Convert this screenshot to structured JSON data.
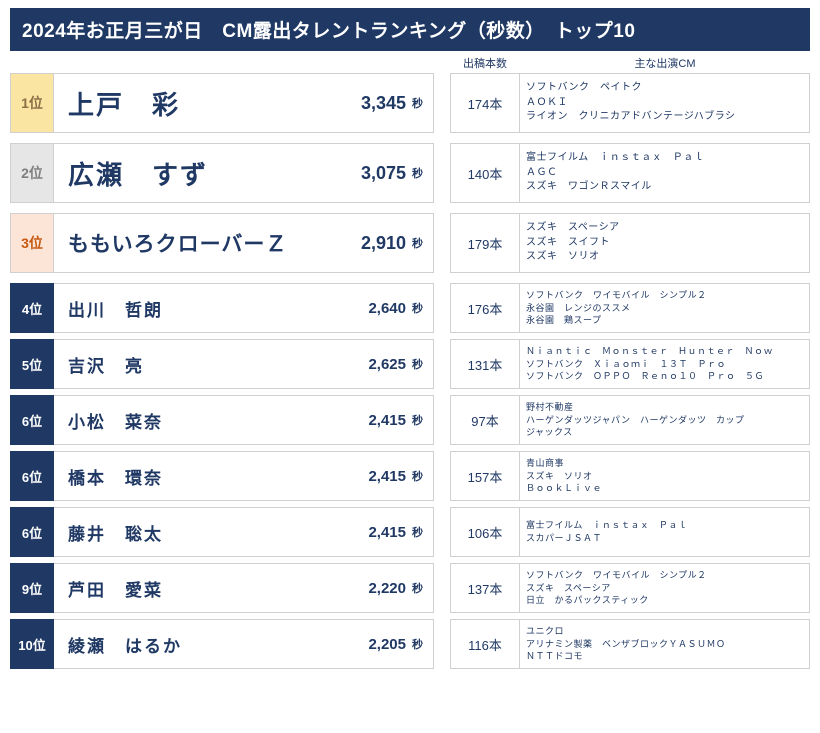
{
  "title": "2024年お正月三が日　CM露出タレントランキング（秒数）　トップ10",
  "headers": {
    "count": "出稿本数",
    "cm": "主な出演CM"
  },
  "unit_seconds": "秒",
  "unit_count": "本",
  "colors": {
    "rank1_bg": "#fbe5a3",
    "rank2_bg": "#e7e6e6",
    "rank3_bg": "#fce4d6",
    "rank_text": "#8b6f47",
    "rank2_text": "#7f7f7f",
    "rank3_text": "#c65911",
    "navy": "#1f3864"
  },
  "rows": [
    {
      "rank": "1位",
      "name": "上戸　彩",
      "seconds": "3,345",
      "count": "174",
      "cms": [
        "ソフトバンク　ペイトク",
        "ＡＯＫＩ",
        "ライオン　クリニカアドバンテージハブラシ"
      ]
    },
    {
      "rank": "2位",
      "name": "広瀬　すず",
      "seconds": "3,075",
      "count": "140",
      "cms": [
        "富士フイルム　ｉｎｓｔａｘ　Ｐａｌ",
        "ＡＧＣ",
        "スズキ　ワゴンＲスマイル"
      ]
    },
    {
      "rank": "3位",
      "name": "ももいろクローバーＺ",
      "seconds": "2,910",
      "count": "179",
      "cms": [
        "スズキ　スペーシア",
        "スズキ　スイフト",
        "スズキ　ソリオ"
      ]
    },
    {
      "rank": "4位",
      "name": "出川　哲朗",
      "seconds": "2,640",
      "count": "176",
      "cms": [
        "ソフトバンク　ワイモバイル　シンプル２",
        "永谷園　レンジのススメ",
        "永谷園　鶏スープ"
      ]
    },
    {
      "rank": "5位",
      "name": "吉沢　亮",
      "seconds": "2,625",
      "count": "131",
      "cms": [
        "Ｎｉａｎｔｉｃ　Ｍｏｎｓｔｅｒ　Ｈｕｎｔｅｒ　Ｎｏｗ",
        "ソフトバンク　Ｘｉａｏｍｉ　１３Ｔ　Ｐｒｏ",
        "ソフトバンク　ＯＰＰＯ　Ｒｅｎｏ１０　Ｐｒｏ　５Ｇ"
      ]
    },
    {
      "rank": "6位",
      "name": "小松　菜奈",
      "seconds": "2,415",
      "count": "97",
      "cms": [
        "野村不動産",
        "ハーゲンダッツジャパン　ハーゲンダッツ　カップ",
        "ジャックス"
      ]
    },
    {
      "rank": "6位",
      "name": "橋本　環奈",
      "seconds": "2,415",
      "count": "157",
      "cms": [
        "青山商事",
        "スズキ　ソリオ",
        "ＢｏｏｋＬｉｖｅ"
      ]
    },
    {
      "rank": "6位",
      "name": "藤井　聡太",
      "seconds": "2,415",
      "count": "106",
      "cms": [
        "富士フイルム　ｉｎｓｔａｘ　Ｐａｌ",
        "スカパーＪＳＡＴ",
        ""
      ]
    },
    {
      "rank": "9位",
      "name": "芦田　愛菜",
      "seconds": "2,220",
      "count": "137",
      "cms": [
        "ソフトバンク　ワイモバイル　シンプル２",
        "スズキ　スペーシア",
        "日立　かるパックスティック"
      ]
    },
    {
      "rank": "10位",
      "name": "綾瀬　はるか",
      "seconds": "2,205",
      "count": "116",
      "cms": [
        "ユニクロ",
        "アリナミン製薬　ベンザブロックＹＡＳＵＭＯ",
        "ＮＴＴドコモ"
      ]
    }
  ]
}
